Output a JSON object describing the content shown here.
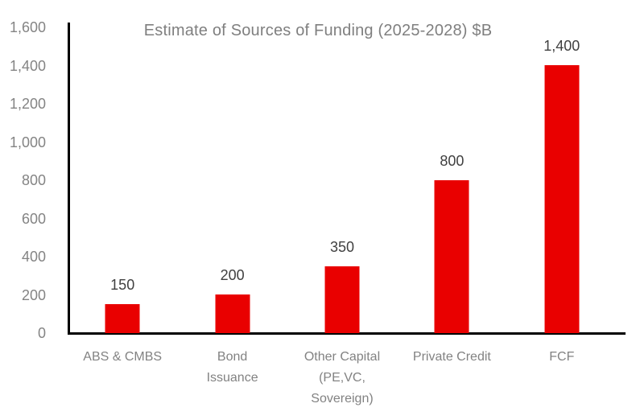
{
  "chart_data": {
    "type": "bar",
    "title": "Estimate of Sources of Funding (2025-2028) $B",
    "categories": [
      "ABS & CMBS",
      "Bond Issuance",
      "Other Capital (PE,VC, Sovereign)",
      "Private Credit",
      "FCF"
    ],
    "category_lines": [
      [
        "ABS & CMBS"
      ],
      [
        "Bond",
        "Issuance"
      ],
      [
        "Other Capital",
        "(PE,VC,",
        "Sovereign)"
      ],
      [
        "Private Credit"
      ],
      [
        "FCF"
      ]
    ],
    "values": [
      150,
      200,
      350,
      800,
      1400
    ],
    "value_labels": [
      "150",
      "200",
      "350",
      "800",
      "1,400"
    ],
    "xlabel": "",
    "ylabel": "",
    "ylim": [
      0,
      1600
    ],
    "y_tick_step": 200,
    "y_ticks": [
      "0",
      "200",
      "400",
      "600",
      "800",
      "1,000",
      "1,200",
      "1,400",
      "1,600"
    ],
    "grid": false,
    "legend_position": "none",
    "colors": {
      "bar": "#E90000",
      "title": "#7f7f7f",
      "axis_tick_labels": "#848484",
      "category_labels": "#828282",
      "value_labels": "#404040",
      "axis_line": "#000000",
      "background": "#ffffff"
    }
  }
}
